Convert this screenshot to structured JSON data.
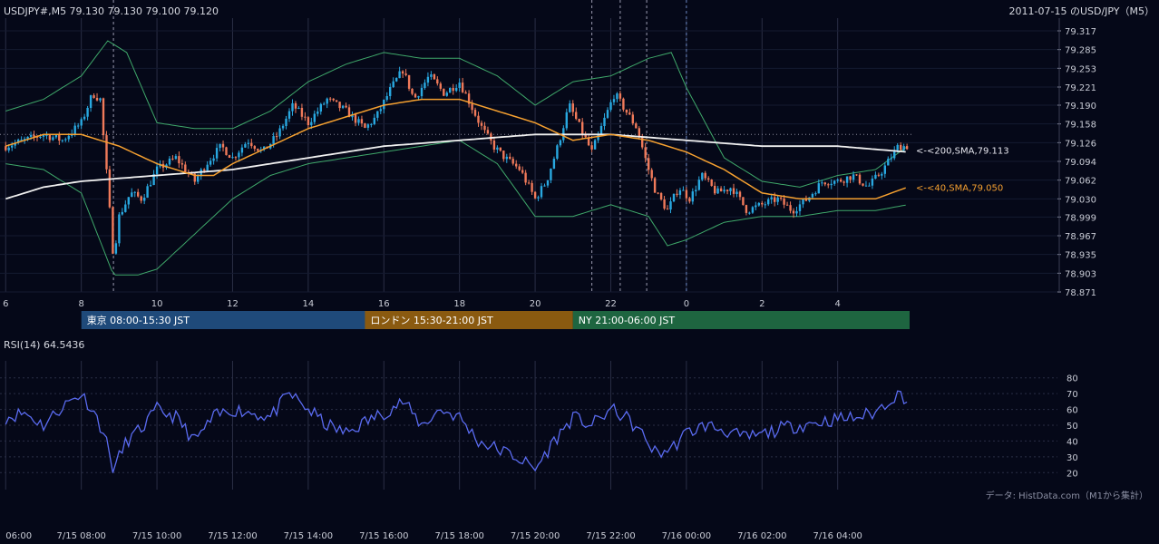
{
  "header": {
    "symbol_info": "USDJPY#,M5 79.130 79.130 79.100 79.120",
    "title": "2011-07-15 のUSD/JPY（M5）"
  },
  "colors": {
    "background": "#050818",
    "bull": "#29a8e0",
    "bear": "#f07a5a",
    "sma40": "#f5a030",
    "sma200": "#f0f0f0",
    "bollinger": "#3fa86a",
    "rsi": "#5a6bf0",
    "grid": "#2a2e45"
  },
  "sessions": [
    {
      "label": "東京 08:00-15:30 JST",
      "color": "#1f4a7a",
      "from_hour": 8,
      "to_hour": 15.5
    },
    {
      "label": "ロンドン 15:30-21:00 JST",
      "color": "#8a5a10",
      "from_hour": 15.5,
      "to_hour": 21
    },
    {
      "label": "NY 21:00-06:00 JST",
      "color": "#1e6540",
      "from_hour": 21,
      "to_hour": 30
    }
  ],
  "rsi_panel": {
    "label": "RSI(14) 64.5436"
  },
  "source_note": "データ: HistData.com（M1から集計）",
  "chart_data": {
    "type": "candlestick",
    "timeframe": "M5",
    "x_range_hours": [
      6,
      29.9
    ],
    "price_axis": {
      "ylim": [
        78.871,
        79.317
      ],
      "ticks": [
        "79.317",
        "79.285",
        "79.253",
        "79.221",
        "79.190",
        "79.158",
        "79.126",
        "79.094",
        "79.062",
        "79.030",
        "78.999",
        "78.967",
        "78.935",
        "78.903",
        "78.871"
      ]
    },
    "hour_axis_ticks": [
      {
        "h": 6,
        "label": "6"
      },
      {
        "h": 8,
        "label": "8"
      },
      {
        "h": 10,
        "label": "10"
      },
      {
        "h": 12,
        "label": "12"
      },
      {
        "h": 14,
        "label": "14"
      },
      {
        "h": 16,
        "label": "16"
      },
      {
        "h": 18,
        "label": "18"
      },
      {
        "h": 20,
        "label": "20"
      },
      {
        "h": 22,
        "label": "22"
      },
      {
        "h": 24,
        "label": "0"
      },
      {
        "h": 26,
        "label": "2"
      },
      {
        "h": 28,
        "label": "4"
      }
    ],
    "date_axis_ticks": [
      {
        "h": 6,
        "label": "06:00"
      },
      {
        "h": 8,
        "label": "7/15 08:00"
      },
      {
        "h": 10,
        "label": "7/15 10:00"
      },
      {
        "h": 12,
        "label": "7/15 12:00"
      },
      {
        "h": 14,
        "label": "7/15 14:00"
      },
      {
        "h": 16,
        "label": "7/15 16:00"
      },
      {
        "h": 18,
        "label": "7/15 18:00"
      },
      {
        "h": 20,
        "label": "7/15 20:00"
      },
      {
        "h": 22,
        "label": "7/15 22:00"
      },
      {
        "h": 24,
        "label": "7/16 00:00"
      },
      {
        "h": 26,
        "label": "7/16 02:00"
      },
      {
        "h": 28,
        "label": "7/16 04:00"
      }
    ],
    "event_lines_hours": [
      8.85,
      21.5,
      22.25,
      22.95,
      24.0
    ],
    "reference_price": 79.14,
    "close_anchors": [
      [
        6.0,
        79.12
      ],
      [
        6.5,
        79.13
      ],
      [
        7.0,
        79.14
      ],
      [
        7.5,
        79.13
      ],
      [
        8.0,
        79.16
      ],
      [
        8.3,
        79.21
      ],
      [
        8.5,
        79.2
      ],
      [
        8.7,
        79.05
      ],
      [
        8.85,
        78.93
      ],
      [
        9.0,
        79.0
      ],
      [
        9.3,
        79.04
      ],
      [
        9.6,
        79.03
      ],
      [
        10.0,
        79.08
      ],
      [
        10.5,
        79.1
      ],
      [
        11.0,
        79.06
      ],
      [
        11.3,
        79.09
      ],
      [
        11.7,
        79.12
      ],
      [
        12.0,
        79.1
      ],
      [
        12.4,
        79.13
      ],
      [
        12.8,
        79.11
      ],
      [
        13.2,
        79.14
      ],
      [
        13.6,
        79.19
      ],
      [
        14.0,
        79.16
      ],
      [
        14.5,
        79.2
      ],
      [
        15.0,
        79.18
      ],
      [
        15.5,
        79.15
      ],
      [
        15.8,
        79.17
      ],
      [
        16.2,
        79.22
      ],
      [
        16.5,
        79.25
      ],
      [
        16.8,
        79.2
      ],
      [
        17.2,
        79.24
      ],
      [
        17.6,
        79.21
      ],
      [
        18.0,
        79.23
      ],
      [
        18.3,
        79.19
      ],
      [
        18.6,
        79.15
      ],
      [
        18.9,
        79.12
      ],
      [
        19.2,
        79.1
      ],
      [
        19.6,
        79.08
      ],
      [
        20.0,
        79.03
      ],
      [
        20.3,
        79.06
      ],
      [
        20.6,
        79.12
      ],
      [
        20.9,
        79.19
      ],
      [
        21.2,
        79.15
      ],
      [
        21.5,
        79.11
      ],
      [
        21.8,
        79.16
      ],
      [
        22.1,
        79.21
      ],
      [
        22.4,
        79.18
      ],
      [
        22.7,
        79.15
      ],
      [
        22.95,
        79.09
      ],
      [
        23.2,
        79.04
      ],
      [
        23.5,
        79.01
      ],
      [
        23.8,
        79.05
      ],
      [
        24.1,
        79.03
      ],
      [
        24.4,
        79.07
      ],
      [
        24.8,
        79.04
      ],
      [
        25.2,
        79.05
      ],
      [
        25.6,
        79.01
      ],
      [
        26.0,
        79.02
      ],
      [
        26.4,
        79.03
      ],
      [
        26.8,
        79.01
      ],
      [
        27.2,
        79.03
      ],
      [
        27.6,
        79.06
      ],
      [
        28.0,
        79.06
      ],
      [
        28.4,
        79.07
      ],
      [
        28.8,
        79.05
      ],
      [
        29.2,
        79.08
      ],
      [
        29.6,
        79.12
      ],
      [
        29.85,
        79.12
      ]
    ],
    "sma40_anchors": [
      [
        6.0,
        79.12
      ],
      [
        7.0,
        79.14
      ],
      [
        8.0,
        79.14
      ],
      [
        9.0,
        79.12
      ],
      [
        10.0,
        79.09
      ],
      [
        11.0,
        79.07
      ],
      [
        11.5,
        79.07
      ],
      [
        12.0,
        79.09
      ],
      [
        13.0,
        79.12
      ],
      [
        14.0,
        79.15
      ],
      [
        15.0,
        79.17
      ],
      [
        16.0,
        79.19
      ],
      [
        17.0,
        79.2
      ],
      [
        17.5,
        79.2
      ],
      [
        18.0,
        79.2
      ],
      [
        19.0,
        79.18
      ],
      [
        20.0,
        79.16
      ],
      [
        21.0,
        79.13
      ],
      [
        22.0,
        79.14
      ],
      [
        23.0,
        79.13
      ],
      [
        24.0,
        79.11
      ],
      [
        25.0,
        79.08
      ],
      [
        26.0,
        79.04
      ],
      [
        27.0,
        79.03
      ],
      [
        28.0,
        79.03
      ],
      [
        29.0,
        79.03
      ],
      [
        29.85,
        79.05
      ]
    ],
    "sma200_anchors": [
      [
        6.0,
        79.03
      ],
      [
        7.0,
        79.05
      ],
      [
        8.0,
        79.06
      ],
      [
        10.0,
        79.07
      ],
      [
        12.0,
        79.08
      ],
      [
        14.0,
        79.1
      ],
      [
        16.0,
        79.12
      ],
      [
        18.0,
        79.13
      ],
      [
        20.0,
        79.14
      ],
      [
        22.0,
        79.14
      ],
      [
        24.0,
        79.13
      ],
      [
        26.0,
        79.12
      ],
      [
        28.0,
        79.12
      ],
      [
        29.85,
        79.11
      ]
    ],
    "bb_upper_anchors": [
      [
        6.0,
        79.18
      ],
      [
        7.0,
        79.2
      ],
      [
        8.0,
        79.24
      ],
      [
        8.7,
        79.3
      ],
      [
        9.2,
        79.28
      ],
      [
        10.0,
        79.16
      ],
      [
        11.0,
        79.15
      ],
      [
        12.0,
        79.15
      ],
      [
        13.0,
        79.18
      ],
      [
        14.0,
        79.23
      ],
      [
        15.0,
        79.26
      ],
      [
        16.0,
        79.28
      ],
      [
        17.0,
        79.27
      ],
      [
        18.0,
        79.27
      ],
      [
        19.0,
        79.24
      ],
      [
        20.0,
        79.19
      ],
      [
        21.0,
        79.23
      ],
      [
        22.0,
        79.24
      ],
      [
        23.0,
        79.27
      ],
      [
        23.6,
        79.28
      ],
      [
        24.0,
        79.22
      ],
      [
        25.0,
        79.1
      ],
      [
        26.0,
        79.06
      ],
      [
        27.0,
        79.05
      ],
      [
        28.0,
        79.07
      ],
      [
        29.0,
        79.08
      ],
      [
        29.85,
        79.12
      ]
    ],
    "bb_lower_anchors": [
      [
        6.0,
        79.09
      ],
      [
        7.0,
        79.08
      ],
      [
        8.0,
        79.04
      ],
      [
        8.85,
        78.9
      ],
      [
        9.5,
        78.9
      ],
      [
        10.0,
        78.91
      ],
      [
        11.0,
        78.97
      ],
      [
        12.0,
        79.03
      ],
      [
        13.0,
        79.07
      ],
      [
        14.0,
        79.09
      ],
      [
        15.0,
        79.1
      ],
      [
        16.0,
        79.11
      ],
      [
        17.0,
        79.12
      ],
      [
        18.0,
        79.13
      ],
      [
        19.0,
        79.09
      ],
      [
        20.0,
        79.0
      ],
      [
        21.0,
        79.0
      ],
      [
        22.0,
        79.02
      ],
      [
        23.0,
        79.0
      ],
      [
        23.5,
        78.95
      ],
      [
        24.0,
        78.96
      ],
      [
        25.0,
        78.99
      ],
      [
        26.0,
        79.0
      ],
      [
        27.0,
        79.0
      ],
      [
        28.0,
        79.01
      ],
      [
        29.0,
        79.01
      ],
      [
        29.85,
        79.02
      ]
    ],
    "ma_labels": [
      {
        "text": "<-<200,SMA,79.113",
        "price": 79.113
      },
      {
        "text": "<-<40,SMA,79.050",
        "price": 79.05
      }
    ],
    "rsi": {
      "period": 14,
      "ylim": [
        15,
        85
      ],
      "ticks": [
        80,
        70,
        60,
        50,
        40,
        30,
        20
      ],
      "anchors": [
        [
          6.0,
          55
        ],
        [
          6.5,
          58
        ],
        [
          7.0,
          50
        ],
        [
          7.5,
          62
        ],
        [
          8.0,
          70
        ],
        [
          8.3,
          60
        ],
        [
          8.6,
          45
        ],
        [
          8.85,
          22
        ],
        [
          9.2,
          40
        ],
        [
          9.6,
          48
        ],
        [
          10.0,
          60
        ],
        [
          10.5,
          55
        ],
        [
          11.0,
          40
        ],
        [
          11.5,
          55
        ],
        [
          12.0,
          60
        ],
        [
          12.5,
          58
        ],
        [
          13.0,
          55
        ],
        [
          13.5,
          70
        ],
        [
          14.0,
          60
        ],
        [
          14.5,
          50
        ],
        [
          15.0,
          45
        ],
        [
          15.5,
          52
        ],
        [
          16.0,
          58
        ],
        [
          16.5,
          65
        ],
        [
          17.0,
          50
        ],
        [
          17.5,
          60
        ],
        [
          18.0,
          55
        ],
        [
          18.5,
          40
        ],
        [
          19.0,
          35
        ],
        [
          19.5,
          30
        ],
        [
          20.0,
          22
        ],
        [
          20.5,
          40
        ],
        [
          21.0,
          55
        ],
        [
          21.5,
          50
        ],
        [
          22.0,
          60
        ],
        [
          22.4,
          55
        ],
        [
          22.8,
          45
        ],
        [
          23.2,
          32
        ],
        [
          23.6,
          35
        ],
        [
          24.0,
          45
        ],
        [
          24.5,
          50
        ],
        [
          25.0,
          47
        ],
        [
          25.5,
          42
        ],
        [
          26.0,
          44
        ],
        [
          26.5,
          48
        ],
        [
          27.0,
          50
        ],
        [
          27.5,
          52
        ],
        [
          28.0,
          54
        ],
        [
          28.5,
          55
        ],
        [
          29.0,
          58
        ],
        [
          29.4,
          67
        ],
        [
          29.7,
          70
        ],
        [
          29.85,
          64
        ]
      ]
    }
  }
}
